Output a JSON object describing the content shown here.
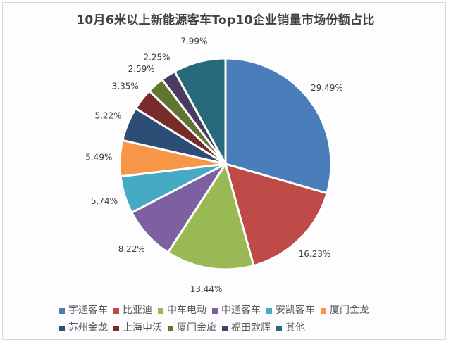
{
  "chart_data": {
    "type": "pie",
    "title": "10月6米以上新能源客车Top10企业销量市场份额占比",
    "unit": "%",
    "categories": [
      "宇通客车",
      "比亚迪",
      "中车电动",
      "中通客车",
      "安凯客车",
      "厦门金龙",
      "苏州金龙",
      "上海申沃",
      "厦门金旅",
      "福田欧辉",
      "其他"
    ],
    "values": [
      29.49,
      16.23,
      13.44,
      8.22,
      5.74,
      5.49,
      5.22,
      3.35,
      2.59,
      2.25,
      7.99
    ],
    "labels": [
      "29.49%",
      "16.23%",
      "13.44%",
      "8.22%",
      "5.74%",
      "5.49%",
      "5.22%",
      "3.35%",
      "2.59%",
      "2.25%",
      "7.99%"
    ],
    "colors": [
      "#4a7ebb",
      "#be4b48",
      "#98b954",
      "#7d60a0",
      "#46aac4",
      "#f79646",
      "#2c4d75",
      "#772c2a",
      "#5f7530",
      "#4b3a62",
      "#276a7c"
    ],
    "start_angle_deg": 0,
    "direction": "clockwise",
    "legend_position": "bottom",
    "label_position": "outside"
  },
  "legend": {
    "rows": [
      [
        0,
        1,
        2,
        3,
        4,
        5
      ],
      [
        6,
        7,
        8,
        9,
        10
      ]
    ]
  }
}
